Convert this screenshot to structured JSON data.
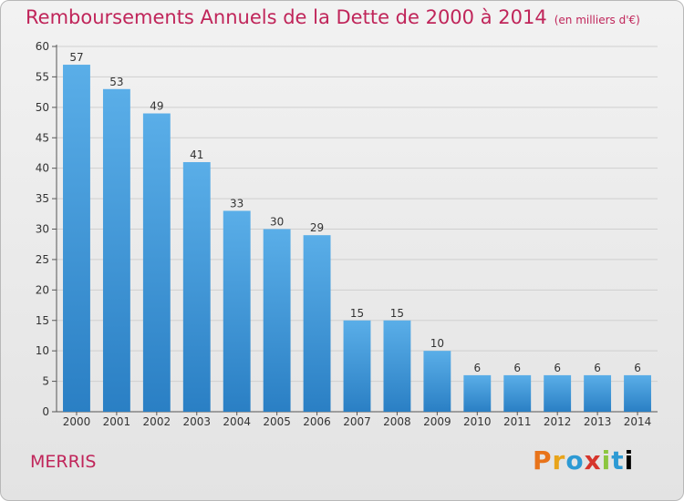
{
  "header": {
    "title": "Remboursements Annuels de la Dette de 2000 à 2014",
    "unit": "(en milliers d'€)"
  },
  "footer": {
    "town": "MERRIS",
    "brand": [
      "P",
      "r",
      "o",
      "x",
      "i",
      "t",
      "i"
    ]
  },
  "colors": {
    "title": "#c0255a",
    "bar_top": "#5aaee8",
    "bar_bottom": "#2a7fc4"
  },
  "chart_data": {
    "type": "bar",
    "categories": [
      "2000",
      "2001",
      "2002",
      "2003",
      "2004",
      "2005",
      "2006",
      "2007",
      "2008",
      "2009",
      "2010",
      "2011",
      "2012",
      "2013",
      "2014"
    ],
    "values": [
      57,
      53,
      49,
      41,
      33,
      30,
      29,
      15,
      15,
      10,
      6,
      6,
      6,
      6,
      6
    ],
    "title": "Remboursements Annuels de la Dette de 2000 à 2014",
    "ylim": [
      0,
      60
    ],
    "yticks": [
      0,
      5,
      10,
      15,
      20,
      25,
      30,
      35,
      40,
      45,
      50,
      55,
      60
    ],
    "grid": true,
    "data_labels": true
  }
}
